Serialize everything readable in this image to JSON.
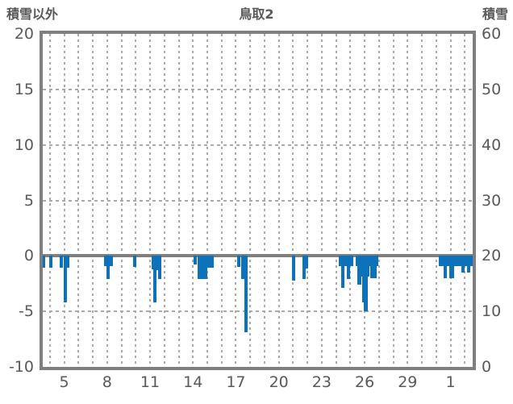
{
  "chart_data": {
    "type": "bar",
    "title": "鳥取2",
    "left_axis": {
      "title": "積雪以外",
      "min": -10,
      "max": 20,
      "ticks": [
        {
          "v": 20,
          "label": "20"
        },
        {
          "v": 15,
          "label": "15"
        },
        {
          "v": 10,
          "label": "10"
        },
        {
          "v": 5,
          "label": "5"
        },
        {
          "v": 0,
          "label": "0"
        },
        {
          "v": -5,
          "label": "-5"
        },
        {
          "v": -10,
          "label": "-10"
        }
      ]
    },
    "right_axis": {
      "title": "積雪",
      "min": 0,
      "max": 60,
      "ticks": [
        {
          "v": 60,
          "label": "60"
        },
        {
          "v": 50,
          "label": "50"
        },
        {
          "v": 40,
          "label": "40"
        },
        {
          "v": 30,
          "label": "30"
        },
        {
          "v": 20,
          "label": "20"
        },
        {
          "v": 10,
          "label": "10"
        },
        {
          "v": 0,
          "label": "0"
        }
      ]
    },
    "x_axis": {
      "min": 3.5,
      "max": 33.55,
      "day_gridlines_from": 4,
      "day_gridlines_to": 33,
      "ticks": [
        {
          "t": 5,
          "label": "5"
        },
        {
          "t": 8,
          "label": "8"
        },
        {
          "t": 11,
          "label": "11"
        },
        {
          "t": 14,
          "label": "14"
        },
        {
          "t": 17,
          "label": "17"
        },
        {
          "t": 20,
          "label": "20"
        },
        {
          "t": 23,
          "label": "23"
        },
        {
          "t": 26,
          "label": "26"
        },
        {
          "t": 29,
          "label": "29"
        },
        {
          "t": 32,
          "label": "1"
        }
      ]
    },
    "grid": {
      "h_dashed_values": [
        15,
        10,
        5,
        -5
      ],
      "zero_line_value": 0
    },
    "bar_width_days": 0.23,
    "bars": [
      [
        3.57,
        -1.05
      ],
      [
        4.06,
        -1.1
      ],
      [
        4.82,
        -1.1
      ],
      [
        5.07,
        -4.2
      ],
      [
        5.25,
        -1.1
      ],
      [
        7.9,
        -0.9
      ],
      [
        8.07,
        -2.1
      ],
      [
        8.29,
        -0.9
      ],
      [
        9.93,
        -1.0
      ],
      [
        11.2,
        -1.2
      ],
      [
        11.33,
        -4.2
      ],
      [
        11.53,
        -1.3
      ],
      [
        11.69,
        -2.1
      ],
      [
        14.14,
        -0.8
      ],
      [
        14.46,
        -2.1
      ],
      [
        14.69,
        -2.1
      ],
      [
        14.88,
        -2.1
      ],
      [
        15.12,
        -1.05
      ],
      [
        15.31,
        -1.05
      ],
      [
        17.22,
        -1.0
      ],
      [
        17.46,
        -2.1
      ],
      [
        17.69,
        -6.9
      ],
      [
        21.01,
        -2.2
      ],
      [
        21.78,
        -2.1
      ],
      [
        21.93,
        -1.15
      ],
      [
        24.3,
        -0.9
      ],
      [
        24.47,
        -2.9
      ],
      [
        24.66,
        -0.9
      ],
      [
        24.88,
        -2.1
      ],
      [
        25.09,
        -0.9
      ],
      [
        25.47,
        -0.9
      ],
      [
        25.63,
        -2.6
      ],
      [
        25.81,
        -1.9
      ],
      [
        25.95,
        -4.2
      ],
      [
        26.08,
        -5.0
      ],
      [
        26.23,
        -1.9
      ],
      [
        26.37,
        -0.9
      ],
      [
        26.48,
        -2.0
      ],
      [
        26.62,
        -0.9
      ],
      [
        26.75,
        -2.0
      ],
      [
        26.84,
        -0.9
      ],
      [
        31.32,
        -0.9
      ],
      [
        31.43,
        -0.9
      ],
      [
        31.61,
        -2.0
      ],
      [
        31.84,
        -0.9
      ],
      [
        32.02,
        -2.0
      ],
      [
        32.16,
        -2.0
      ],
      [
        32.34,
        -0.9
      ],
      [
        32.62,
        -0.9
      ],
      [
        32.85,
        -1.5
      ],
      [
        33.05,
        -0.9
      ],
      [
        33.25,
        -1.5
      ],
      [
        33.44,
        -0.9
      ]
    ],
    "colors": {
      "bar": "#0d72ba",
      "frame": "#7f7f7f",
      "grid": "#a9a9a9",
      "text": "#595959"
    }
  }
}
